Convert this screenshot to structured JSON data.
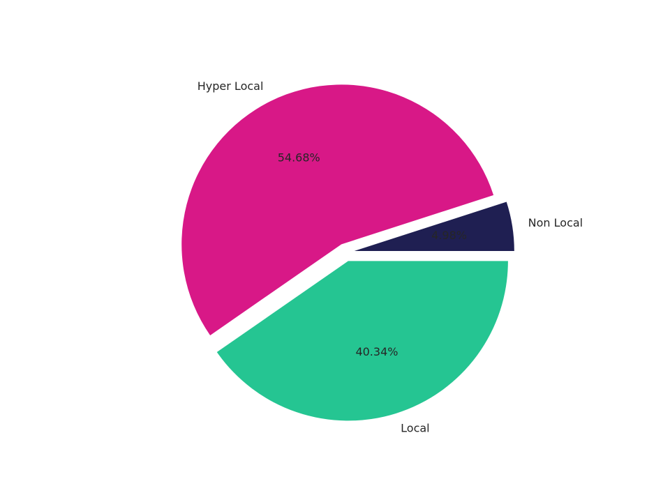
{
  "chart_data": {
    "type": "pie",
    "categories": [
      "Non Local",
      "Hyper Local",
      "Local"
    ],
    "values": [
      4.98,
      54.68,
      40.34
    ],
    "value_labels": [
      "4.98%",
      "54.68%",
      "40.34%"
    ],
    "colors": [
      "#1f1f52",
      "#d81887",
      "#25c592"
    ]
  }
}
